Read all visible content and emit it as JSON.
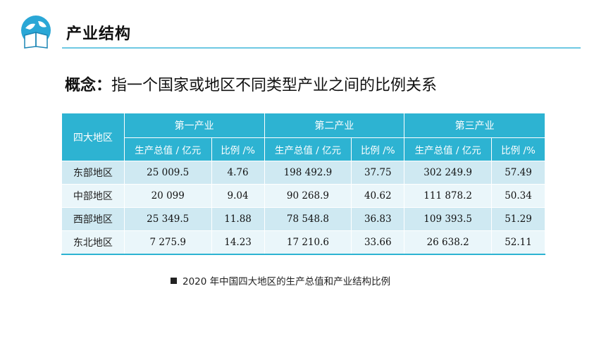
{
  "header": {
    "title": "产业结构",
    "logo_icon": "globe-book-icon",
    "accent_color": "#2db3d2"
  },
  "concept": {
    "term": "概念",
    "colon": "：",
    "definition": "指一个国家或地区不同类型产业之间的比例关系"
  },
  "table": {
    "corner_header": "四大地区",
    "groups": [
      "第一产业",
      "第二产业",
      "第三产业"
    ],
    "sub_headers": [
      "生产总值 / 亿元",
      "比例 /%",
      "生产总值 / 亿元",
      "比例 /%",
      "生产总值 / 亿元",
      "比例 /%"
    ],
    "rows": [
      {
        "region": "东部地区",
        "values": [
          "25 009.5",
          "4.76",
          "198 492.9",
          "37.75",
          "302 249.9",
          "57.49"
        ]
      },
      {
        "region": "中部地区",
        "values": [
          "20 099",
          "9.04",
          "90 268.9",
          "40.62",
          "111 878.2",
          "50.34"
        ]
      },
      {
        "region": "西部地区",
        "values": [
          "25 349.5",
          "11.88",
          "78 548.8",
          "36.83",
          "109 393.5",
          "51.29"
        ]
      },
      {
        "region": "东北地区",
        "values": [
          "7 275.9",
          "14.23",
          "17 210.6",
          "33.66",
          "26 638.2",
          "52.11"
        ]
      }
    ],
    "header_color": "#2db3d2",
    "row_color_odd": "#cfe9f2",
    "row_color_even": "#eaf6fa"
  },
  "caption": {
    "icon": "black-square-icon",
    "text": "2020 年中国四大地区的生产总值和产业结构比例"
  }
}
